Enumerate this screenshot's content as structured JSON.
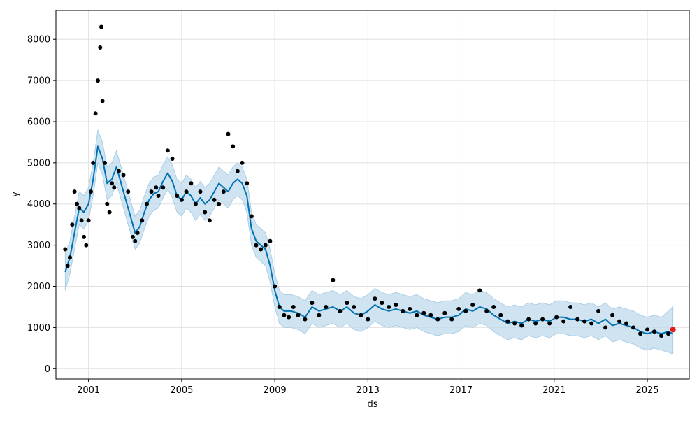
{
  "chart_data": {
    "type": "line",
    "title": "",
    "xlabel": "ds",
    "ylabel": "y",
    "xlim": [
      1999.6,
      2026.8
    ],
    "ylim": [
      -250,
      8700
    ],
    "grid": true,
    "x_ticks": [
      {
        "value": 2001,
        "label": "2001"
      },
      {
        "value": 2005,
        "label": "2005"
      },
      {
        "value": 2009,
        "label": "2009"
      },
      {
        "value": 2013,
        "label": "2013"
      },
      {
        "value": 2017,
        "label": "2017"
      },
      {
        "value": 2021,
        "label": "2021"
      },
      {
        "value": 2025,
        "label": "2025"
      }
    ],
    "y_ticks": [
      {
        "value": 0,
        "label": "0"
      },
      {
        "value": 1000,
        "label": "1000"
      },
      {
        "value": 2000,
        "label": "2000"
      },
      {
        "value": 3000,
        "label": "3000"
      },
      {
        "value": 4000,
        "label": "4000"
      },
      {
        "value": 5000,
        "label": "5000"
      },
      {
        "value": 6000,
        "label": "6000"
      },
      {
        "value": 7000,
        "label": "7000"
      },
      {
        "value": 8000,
        "label": "8000"
      }
    ],
    "series": [
      {
        "role": "observed",
        "style": "points",
        "color": "#000000",
        "x": [
          2000.0,
          2000.1,
          2000.2,
          2000.3,
          2000.4,
          2000.5,
          2000.6,
          2000.7,
          2000.8,
          2000.9,
          2001.0,
          2001.1,
          2001.2,
          2001.3,
          2001.4,
          2001.5,
          2001.55,
          2001.6,
          2001.7,
          2001.8,
          2001.9,
          2002.0,
          2002.1,
          2002.3,
          2002.5,
          2002.7,
          2002.9,
          2003.0,
          2003.1,
          2003.3,
          2003.5,
          2003.7,
          2003.9,
          2004.0,
          2004.2,
          2004.4,
          2004.6,
          2004.8,
          2005.0,
          2005.2,
          2005.4,
          2005.6,
          2005.8,
          2006.0,
          2006.2,
          2006.4,
          2006.6,
          2006.8,
          2007.0,
          2007.2,
          2007.4,
          2007.6,
          2007.8,
          2008.0,
          2008.2,
          2008.4,
          2008.6,
          2008.8,
          2009.0,
          2009.2,
          2009.4,
          2009.6,
          2009.8,
          2010.0,
          2010.3,
          2010.6,
          2010.9,
          2011.2,
          2011.5,
          2011.8,
          2012.1,
          2012.4,
          2012.7,
          2013.0,
          2013.3,
          2013.6,
          2013.9,
          2014.2,
          2014.5,
          2014.8,
          2015.1,
          2015.4,
          2015.7,
          2016.0,
          2016.3,
          2016.6,
          2016.9,
          2017.2,
          2017.5,
          2017.8,
          2018.1,
          2018.4,
          2018.7,
          2019.0,
          2019.3,
          2019.6,
          2019.9,
          2020.2,
          2020.5,
          2020.8,
          2021.1,
          2021.4,
          2021.7,
          2022.0,
          2022.3,
          2022.6,
          2022.9,
          2023.2,
          2023.5,
          2023.8,
          2024.1,
          2024.4,
          2024.7,
          2025.0,
          2025.3,
          2025.6,
          2025.9,
          2026.1
        ],
        "y": [
          2900,
          2500,
          2700,
          3500,
          4300,
          4000,
          3900,
          3600,
          3200,
          3000,
          3600,
          4300,
          5000,
          6200,
          7000,
          7800,
          8300,
          6500,
          5000,
          4000,
          3800,
          4500,
          4400,
          4800,
          4700,
          4300,
          3200,
          3100,
          3300,
          3600,
          4000,
          4300,
          4400,
          4200,
          4400,
          5300,
          5100,
          4200,
          4100,
          4300,
          4500,
          4000,
          4300,
          3800,
          3600,
          4100,
          4000,
          4300,
          5700,
          5400,
          4800,
          5000,
          4500,
          3700,
          3000,
          2900,
          3000,
          3100,
          2000,
          1500,
          1300,
          1250,
          1500,
          1300,
          1200,
          1600,
          1300,
          1500,
          2150,
          1400,
          1600,
          1500,
          1300,
          1200,
          1700,
          1600,
          1500,
          1550,
          1400,
          1450,
          1300,
          1350,
          1300,
          1200,
          1350,
          1200,
          1450,
          1400,
          1550,
          1900,
          1400,
          1500,
          1300,
          1150,
          1100,
          1050,
          1200,
          1100,
          1200,
          1100,
          1250,
          1150,
          1500,
          1200,
          1150,
          1100,
          1400,
          1000,
          1300,
          1150,
          1100,
          1000,
          850,
          950,
          900,
          800,
          850,
          950
        ]
      },
      {
        "role": "forecast",
        "style": "line",
        "color": "#0072B2",
        "band_color": "#BFD9EC",
        "x": [
          2000.0,
          2000.2,
          2000.4,
          2000.6,
          2000.8,
          2001.0,
          2001.2,
          2001.4,
          2001.6,
          2001.8,
          2002.0,
          2002.2,
          2002.4,
          2002.6,
          2002.8,
          2003.0,
          2003.2,
          2003.4,
          2003.6,
          2003.8,
          2004.0,
          2004.2,
          2004.4,
          2004.6,
          2004.8,
          2005.0,
          2005.2,
          2005.4,
          2005.6,
          2005.8,
          2006.0,
          2006.2,
          2006.4,
          2006.6,
          2006.8,
          2007.0,
          2007.2,
          2007.4,
          2007.6,
          2007.8,
          2008.0,
          2008.2,
          2008.4,
          2008.6,
          2008.8,
          2009.0,
          2009.2,
          2009.4,
          2009.7,
          2010.0,
          2010.3,
          2010.6,
          2010.9,
          2011.2,
          2011.5,
          2011.8,
          2012.1,
          2012.4,
          2012.7,
          2013.0,
          2013.3,
          2013.6,
          2013.9,
          2014.2,
          2014.5,
          2014.8,
          2015.1,
          2015.4,
          2015.7,
          2016.0,
          2016.3,
          2016.6,
          2016.9,
          2017.2,
          2017.5,
          2017.8,
          2018.1,
          2018.4,
          2018.7,
          2019.0,
          2019.3,
          2019.6,
          2019.9,
          2020.2,
          2020.5,
          2020.8,
          2021.1,
          2021.4,
          2021.7,
          2022.0,
          2022.3,
          2022.6,
          2022.9,
          2023.2,
          2023.5,
          2023.8,
          2024.1,
          2024.4,
          2024.7,
          2025.0,
          2025.3,
          2025.6,
          2025.9,
          2026.1
        ],
        "y": [
          2350,
          2700,
          3300,
          3900,
          3800,
          4000,
          4600,
          5400,
          5100,
          4500,
          4600,
          4900,
          4500,
          4100,
          3700,
          3300,
          3450,
          3800,
          4100,
          4250,
          4300,
          4550,
          4750,
          4550,
          4200,
          4100,
          4300,
          4200,
          4000,
          4150,
          4000,
          4100,
          4300,
          4500,
          4400,
          4300,
          4500,
          4600,
          4500,
          4200,
          3400,
          3100,
          3000,
          2900,
          2500,
          1900,
          1500,
          1400,
          1400,
          1350,
          1250,
          1500,
          1400,
          1450,
          1500,
          1400,
          1500,
          1350,
          1300,
          1400,
          1550,
          1450,
          1400,
          1450,
          1400,
          1350,
          1400,
          1300,
          1250,
          1200,
          1250,
          1250,
          1300,
          1450,
          1400,
          1500,
          1450,
          1300,
          1200,
          1100,
          1150,
          1100,
          1200,
          1150,
          1200,
          1150,
          1250,
          1250,
          1200,
          1200,
          1150,
          1200,
          1100,
          1200,
          1050,
          1100,
          1050,
          1000,
          900,
          850,
          900,
          850,
          900,
          850
        ],
        "lower": [
          1900,
          2300,
          2900,
          3500,
          3400,
          3600,
          4200,
          5000,
          4700,
          4100,
          4200,
          4500,
          4100,
          3700,
          3300,
          2900,
          3050,
          3400,
          3700,
          3850,
          3900,
          4150,
          4350,
          4150,
          3800,
          3700,
          3900,
          3800,
          3600,
          3750,
          3600,
          3700,
          3900,
          4100,
          4000,
          3900,
          4100,
          4200,
          4100,
          3800,
          3000,
          2700,
          2600,
          2500,
          2100,
          1500,
          1100,
          1000,
          1000,
          950,
          850,
          1100,
          1000,
          1050,
          1100,
          1000,
          1100,
          950,
          900,
          1000,
          1150,
          1050,
          1000,
          1050,
          1000,
          950,
          1000,
          900,
          850,
          800,
          850,
          850,
          900,
          1050,
          1000,
          1100,
          1050,
          900,
          800,
          700,
          750,
          700,
          800,
          750,
          800,
          750,
          850,
          850,
          800,
          800,
          750,
          800,
          700,
          800,
          650,
          700,
          650,
          600,
          500,
          450,
          500,
          450,
          400,
          350
        ],
        "upper": [
          2800,
          3100,
          3700,
          4300,
          4200,
          4400,
          5000,
          5800,
          5500,
          4900,
          5000,
          5300,
          4900,
          4500,
          4100,
          3700,
          3850,
          4200,
          4500,
          4650,
          4700,
          4950,
          5150,
          4950,
          4600,
          4500,
          4700,
          4600,
          4400,
          4550,
          4400,
          4500,
          4700,
          4900,
          4800,
          4700,
          4900,
          5000,
          4900,
          4600,
          3800,
          3500,
          3400,
          3300,
          2900,
          2300,
          1900,
          1800,
          1800,
          1750,
          1650,
          1900,
          1800,
          1850,
          1900,
          1800,
          1900,
          1750,
          1700,
          1800,
          1950,
          1850,
          1800,
          1850,
          1800,
          1750,
          1800,
          1700,
          1650,
          1600,
          1650,
          1650,
          1700,
          1850,
          1800,
          1900,
          1850,
          1700,
          1600,
          1500,
          1550,
          1500,
          1600,
          1550,
          1600,
          1550,
          1650,
          1650,
          1600,
          1600,
          1550,
          1600,
          1500,
          1600,
          1450,
          1500,
          1450,
          1400,
          1300,
          1250,
          1300,
          1250,
          1400,
          1500
        ]
      },
      {
        "role": "highlight",
        "style": "points",
        "color": "#E41A1C",
        "x": [
          2026.1
        ],
        "y": [
          950
        ]
      }
    ]
  }
}
